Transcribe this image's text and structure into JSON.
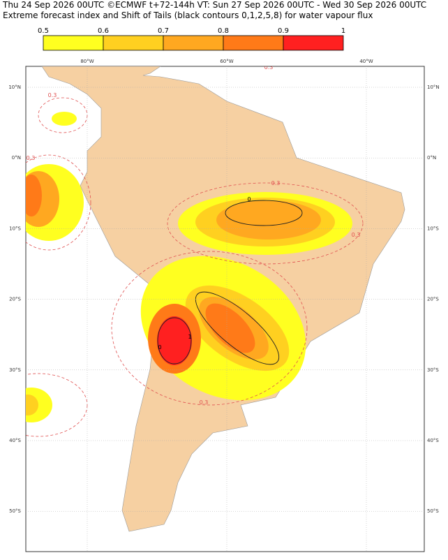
{
  "header": {
    "line1": "Thu 24 Sep 2026 00UTC ©ECMWF t+72-144h  VT: Sun 27 Sep 2026 00UTC - Wed 30 Sep 2026 00UTC",
    "line2": "Extreme forecast index and Shift of Tails (black contours 0,1,2,5,8) for water vapour flux"
  },
  "colorbar": {
    "ticks": [
      0.5,
      0.6,
      0.7,
      0.8,
      0.9,
      1
    ],
    "colors": [
      "#ffff20",
      "#ffd020",
      "#ffa820",
      "#ff7a18",
      "#ff2020"
    ]
  },
  "map": {
    "lat_labels": [
      "10°N",
      "0°N",
      "10°S",
      "20°S",
      "30°S",
      "40°S",
      "50°S"
    ],
    "lon_labels": [
      "80°W",
      "60°W",
      "40°W"
    ],
    "contour_labels": [
      "0.3",
      "0.3",
      "0.3",
      "0.3",
      "0.3",
      "0.3",
      "0",
      "0",
      "1"
    ]
  }
}
